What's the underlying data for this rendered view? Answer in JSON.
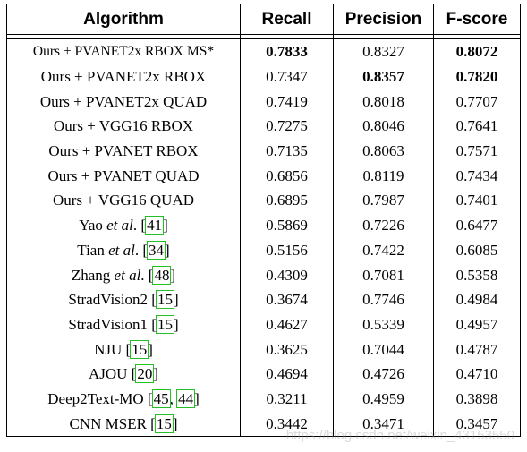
{
  "headers": [
    "Algorithm",
    "Recall",
    "Precision",
    "F-score"
  ],
  "rows": [
    {
      "pre": "Ours + PVANET2x RBOX MS*",
      "it": "",
      "post": "",
      "refs": [],
      "recall": "0.7833",
      "precision": "0.8327",
      "fscore": "0.8072",
      "bold": [
        "recall",
        "fscore"
      ],
      "small": true
    },
    {
      "pre": "Ours + PVANET2x RBOX",
      "it": "",
      "post": "",
      "refs": [],
      "recall": "0.7347",
      "precision": "0.8357",
      "fscore": "0.7820",
      "bold": [
        "precision",
        "fscore"
      ]
    },
    {
      "pre": "Ours + PVANET2x QUAD",
      "it": "",
      "post": "",
      "refs": [],
      "recall": "0.7419",
      "precision": "0.8018",
      "fscore": "0.7707",
      "bold": []
    },
    {
      "pre": "Ours + VGG16 RBOX",
      "it": "",
      "post": "",
      "refs": [],
      "recall": "0.7275",
      "precision": "0.8046",
      "fscore": "0.7641",
      "bold": []
    },
    {
      "pre": "Ours + PVANET RBOX",
      "it": "",
      "post": "",
      "refs": [],
      "recall": "0.7135",
      "precision": "0.8063",
      "fscore": "0.7571",
      "bold": []
    },
    {
      "pre": "Ours + PVANET QUAD",
      "it": "",
      "post": "",
      "refs": [],
      "recall": "0.6856",
      "precision": "0.8119",
      "fscore": "0.7434",
      "bold": []
    },
    {
      "pre": "Ours + VGG16 QUAD",
      "it": "",
      "post": "",
      "refs": [],
      "recall": "0.6895",
      "precision": "0.7987",
      "fscore": "0.7401",
      "bold": []
    },
    {
      "pre": "Yao ",
      "it": "et al",
      "post": ". ",
      "refs": [
        "41"
      ],
      "recall": "0.5869",
      "precision": "0.7226",
      "fscore": "0.6477",
      "bold": []
    },
    {
      "pre": "Tian ",
      "it": "et al",
      "post": ". ",
      "refs": [
        "34"
      ],
      "recall": "0.5156",
      "precision": "0.7422",
      "fscore": "0.6085",
      "bold": []
    },
    {
      "pre": "Zhang ",
      "it": "et al",
      "post": ". ",
      "refs": [
        "48"
      ],
      "recall": "0.4309",
      "precision": "0.7081",
      "fscore": "0.5358",
      "bold": []
    },
    {
      "pre": "StradVision2 ",
      "it": "",
      "post": "",
      "refs": [
        "15"
      ],
      "recall": "0.3674",
      "precision": "0.7746",
      "fscore": "0.4984",
      "bold": []
    },
    {
      "pre": "StradVision1 ",
      "it": "",
      "post": "",
      "refs": [
        "15"
      ],
      "recall": "0.4627",
      "precision": "0.5339",
      "fscore": "0.4957",
      "bold": []
    },
    {
      "pre": "NJU ",
      "it": "",
      "post": "",
      "refs": [
        "15"
      ],
      "recall": "0.3625",
      "precision": "0.7044",
      "fscore": "0.4787",
      "bold": []
    },
    {
      "pre": "AJOU ",
      "it": "",
      "post": "",
      "refs": [
        "20"
      ],
      "recall": "0.4694",
      "precision": "0.4726",
      "fscore": "0.4710",
      "bold": []
    },
    {
      "pre": "Deep2Text-MO ",
      "it": "",
      "post": "",
      "refs": [
        "45",
        "44"
      ],
      "recall": "0.3211",
      "precision": "0.4959",
      "fscore": "0.3898",
      "bold": []
    },
    {
      "pre": "CNN MSER ",
      "it": "",
      "post": "",
      "refs": [
        "15"
      ],
      "recall": "0.3442",
      "precision": "0.3471",
      "fscore": "0.3457",
      "bold": []
    }
  ],
  "watermark": "https://blog.csdn.net/weixin_43153550"
}
